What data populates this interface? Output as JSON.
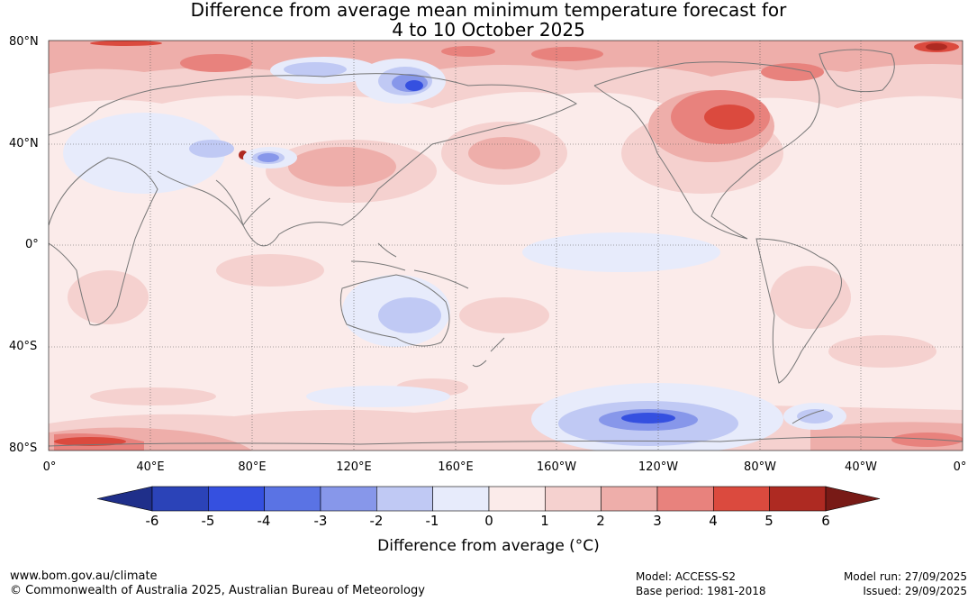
{
  "title": {
    "line1": "Difference from average mean minimum temperature forecast for",
    "line2": "4 to 10 October 2025"
  },
  "map": {
    "lat_labels": [
      "80°N",
      "40°N",
      "0°",
      "40°S",
      "80°S"
    ],
    "lon_labels": [
      "0°",
      "40°E",
      "80°E",
      "120°E",
      "160°E",
      "160°W",
      "120°W",
      "80°W",
      "40°W",
      "0°"
    ],
    "colors": {
      "land_outline": "#777777",
      "grid": "#555555",
      "background": "#fbebea"
    }
  },
  "colorbar": {
    "ticks": [
      "-6",
      "-5",
      "-4",
      "-3",
      "-2",
      "-1",
      "0",
      "1",
      "2",
      "3",
      "4",
      "5",
      "6"
    ],
    "colors": [
      "#1f2f8a",
      "#2b43b8",
      "#3550e0",
      "#5a73e4",
      "#8797ea",
      "#c0c9f4",
      "#e7ebfb",
      "#fbebea",
      "#f5d1cf",
      "#eeaeaa",
      "#e8827d",
      "#db4a3e",
      "#ae2a22",
      "#781a16"
    ],
    "label": "Difference from average (°C)"
  },
  "footer": {
    "website": "www.bom.gov.au/climate",
    "copyright": "© Commonwealth of Australia 2025, Australian Bureau of Meteorology",
    "model": "Model: ACCESS-S2",
    "base_period": "Base period: 1981-2018",
    "model_run": "Model run: 27/09/2025",
    "issued": "Issued: 29/09/2025"
  }
}
